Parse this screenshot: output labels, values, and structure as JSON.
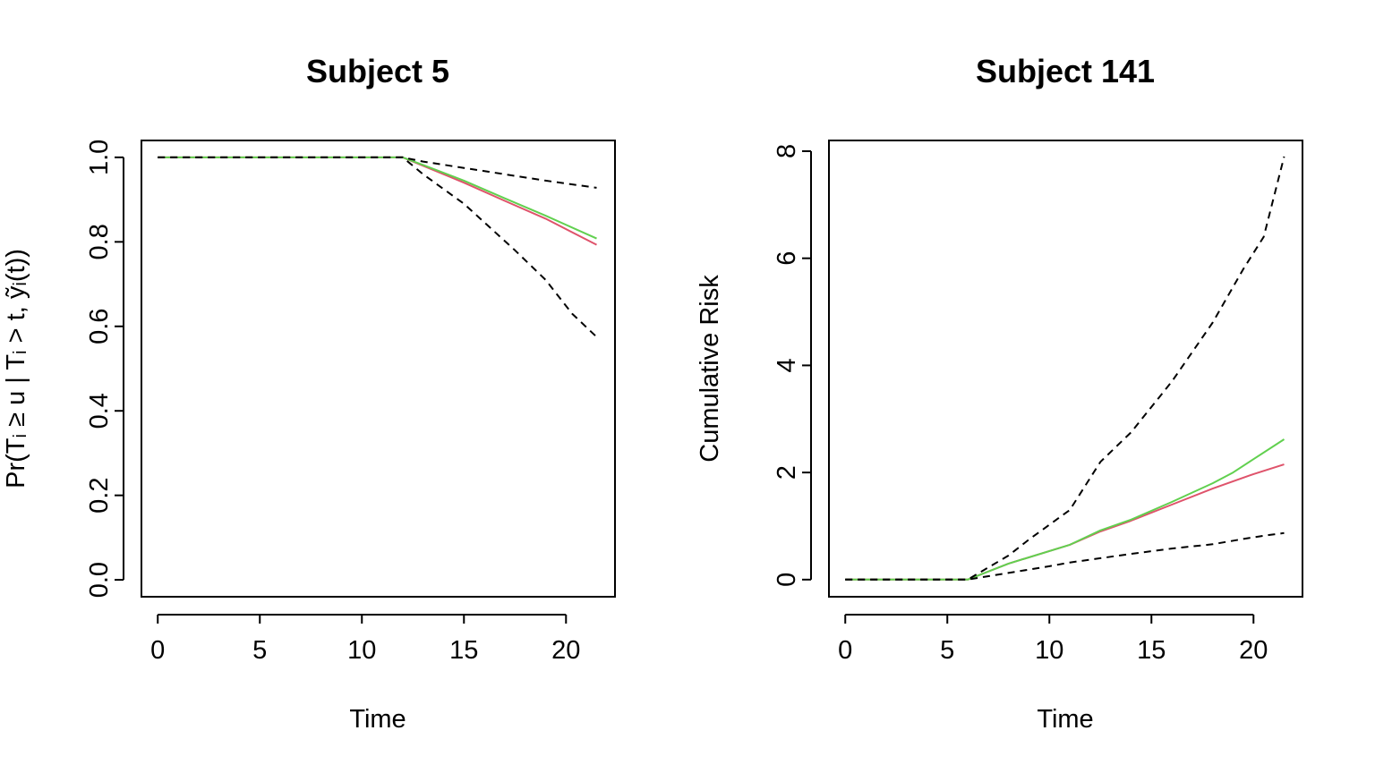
{
  "chart_data": [
    {
      "type": "line",
      "title": "Subject 5",
      "xlabel": "Time",
      "ylabel": "Pr(Tᵢ ≥ u | Tᵢ > t, ỹᵢ(t))",
      "xlim": [
        -0.8,
        22.4
      ],
      "ylim": [
        -0.04,
        1.04
      ],
      "xticks": [
        0,
        5,
        10,
        15,
        20
      ],
      "yticks": [
        0.0,
        0.2,
        0.4,
        0.6,
        0.8,
        1.0
      ],
      "ytick_labels": [
        "0.0",
        "0.2",
        "0.4",
        "0.6",
        "0.8",
        "1.0"
      ],
      "grid": false,
      "series": [
        {
          "color": "#DF536B",
          "style": "solid",
          "x": [
            0,
            12,
            13,
            15,
            17,
            19,
            21.5
          ],
          "y": [
            1,
            1,
            0.98,
            0.94,
            0.897,
            0.855,
            0.793
          ]
        },
        {
          "color": "#61D04F",
          "style": "solid",
          "x": [
            0,
            12,
            13,
            15,
            17,
            19,
            21.5
          ],
          "y": [
            1,
            1,
            0.982,
            0.945,
            0.903,
            0.862,
            0.808
          ]
        },
        {
          "color": "#000000",
          "style": "dashed",
          "x": [
            0,
            12,
            13,
            15,
            17,
            19,
            21.5
          ],
          "y": [
            1,
            1,
            0.99,
            0.975,
            0.96,
            0.945,
            0.928
          ]
        },
        {
          "color": "#000000",
          "style": "dashed",
          "x": [
            0,
            12,
            13,
            15,
            17.5,
            19,
            20.3,
            21.5
          ],
          "y": [
            1,
            1,
            0.96,
            0.89,
            0.78,
            0.71,
            0.63,
            0.575
          ]
        }
      ]
    },
    {
      "type": "line",
      "title": "Subject 141",
      "xlabel": "Time",
      "ylabel": "Cumulative Risk",
      "xlim": [
        -0.8,
        22.4
      ],
      "ylim": [
        -0.32,
        8.2
      ],
      "xticks": [
        0,
        5,
        10,
        15,
        20
      ],
      "yticks": [
        0,
        2,
        4,
        6,
        8
      ],
      "ytick_labels": [
        "0",
        "2",
        "4",
        "6",
        "8"
      ],
      "grid": false,
      "series": [
        {
          "color": "#DF536B",
          "style": "solid",
          "x": [
            0,
            6,
            8,
            11,
            12.5,
            14,
            16,
            18,
            20,
            21.5
          ],
          "y": [
            0,
            0,
            0.3,
            0.65,
            0.9,
            1.1,
            1.4,
            1.7,
            1.97,
            2.15
          ]
        },
        {
          "color": "#61D04F",
          "style": "solid",
          "x": [
            0,
            6,
            8,
            11,
            12.5,
            14,
            16,
            18,
            19,
            20,
            21.5
          ],
          "y": [
            0,
            0,
            0.3,
            0.65,
            0.92,
            1.12,
            1.45,
            1.8,
            2.0,
            2.25,
            2.62
          ]
        },
        {
          "color": "#000000",
          "style": "dashed",
          "x": [
            0,
            6,
            10,
            11,
            12.5,
            14,
            16,
            18,
            19.5,
            20.5,
            21.5
          ],
          "y": [
            0,
            0,
            0.25,
            0.32,
            0.4,
            0.48,
            0.58,
            0.66,
            0.76,
            0.82,
            0.87
          ]
        },
        {
          "color": "#000000",
          "style": "dashed",
          "x": [
            0,
            6,
            8,
            9,
            11,
            12.5,
            14,
            16,
            18,
            19.5,
            20.5,
            21.5
          ],
          "y": [
            0,
            0,
            0.45,
            0.75,
            1.3,
            2.2,
            2.75,
            3.7,
            4.8,
            5.8,
            6.4,
            7.9
          ]
        }
      ]
    }
  ]
}
